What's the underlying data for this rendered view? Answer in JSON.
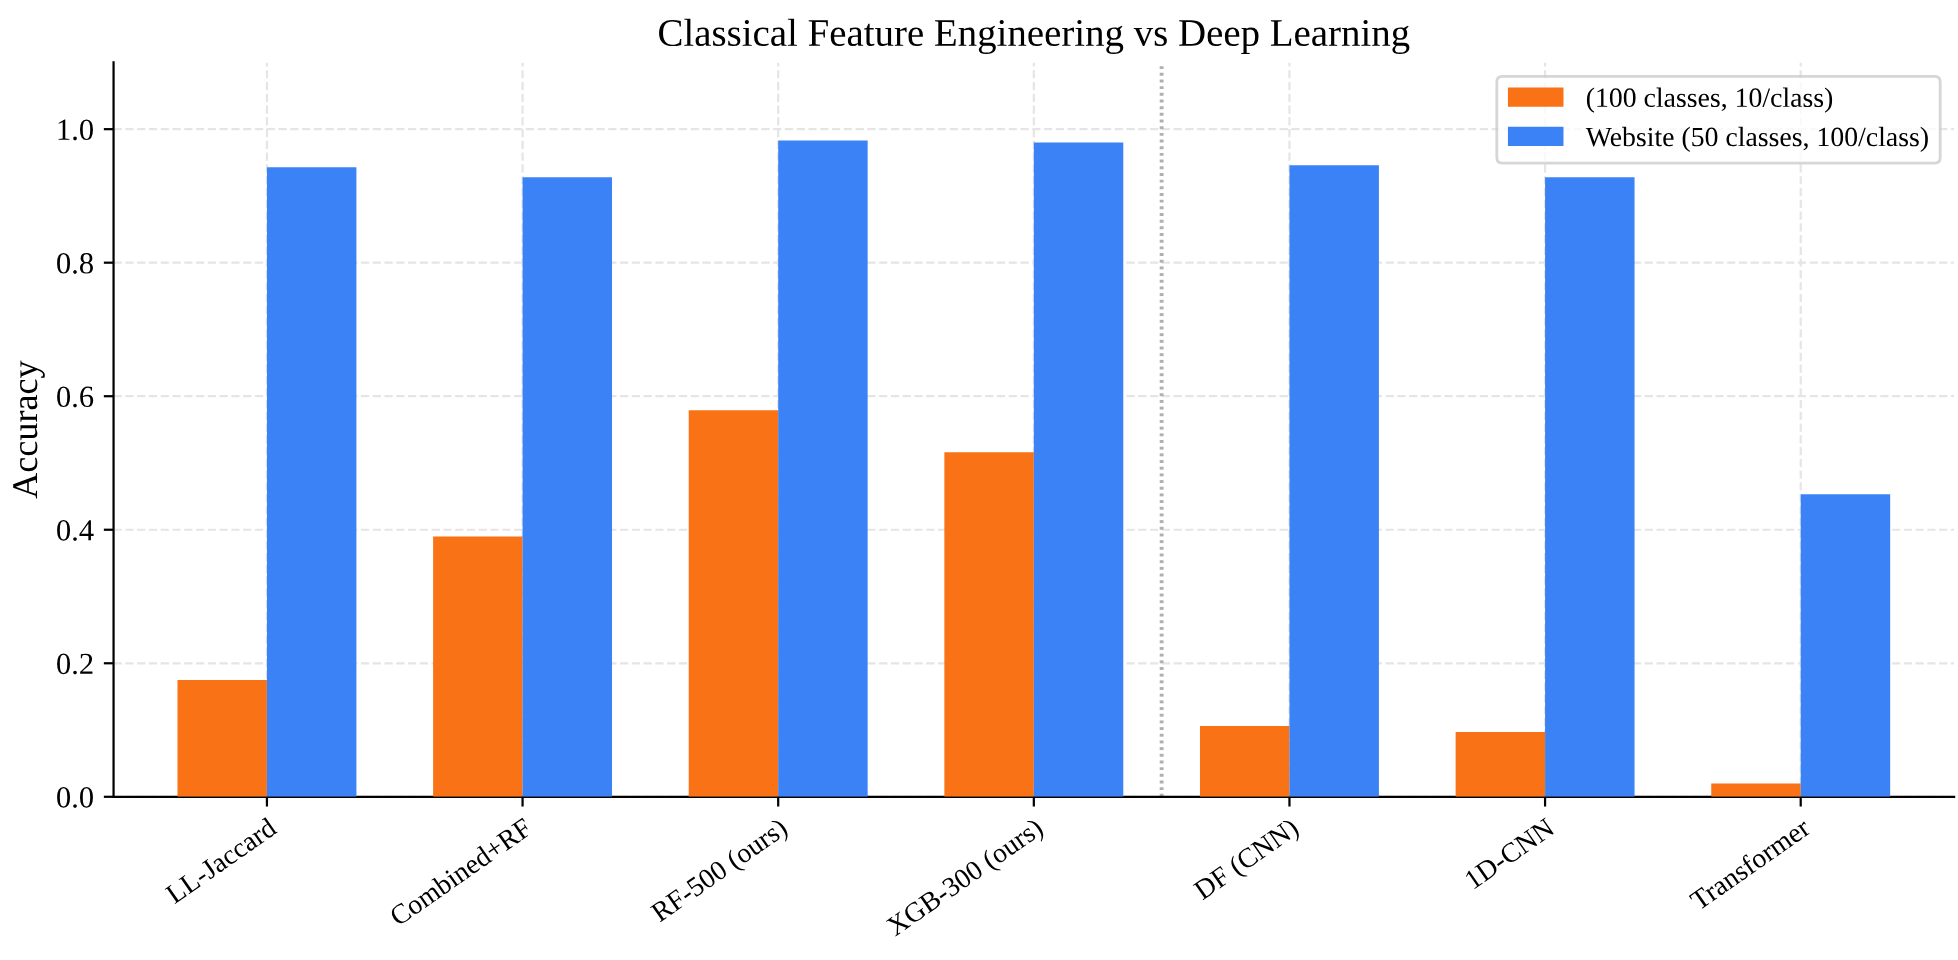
{
  "chart_data": {
    "type": "bar",
    "title": "Classical Feature Engineering vs Deep Learning",
    "ylabel": "Accuracy",
    "categories": [
      "LL-Jaccard",
      "Combined+RF",
      "RF-500 (ours)",
      "XGB-300 (ours)",
      "DF (CNN)",
      "1D-CNN",
      "Transformer"
    ],
    "series": [
      {
        "name": "(100 classes, 10/class)",
        "color": "#f97316",
        "values": [
          0.175,
          0.39,
          0.579,
          0.516,
          0.106,
          0.097,
          0.02
        ]
      },
      {
        "name": "Website (50 classes, 100/class)",
        "color": "#3b82f6",
        "values": [
          0.943,
          0.928,
          0.983,
          0.98,
          0.946,
          0.928,
          0.453
        ]
      }
    ],
    "ylim": [
      0,
      1.1
    ],
    "yticks": [
      {
        "value": 0,
        "label": "0.0"
      },
      0.2,
      0.4,
      0.6,
      0.8,
      {
        "value": 1,
        "label": "1.0"
      }
    ],
    "grid": true,
    "legend": "top right"
  }
}
